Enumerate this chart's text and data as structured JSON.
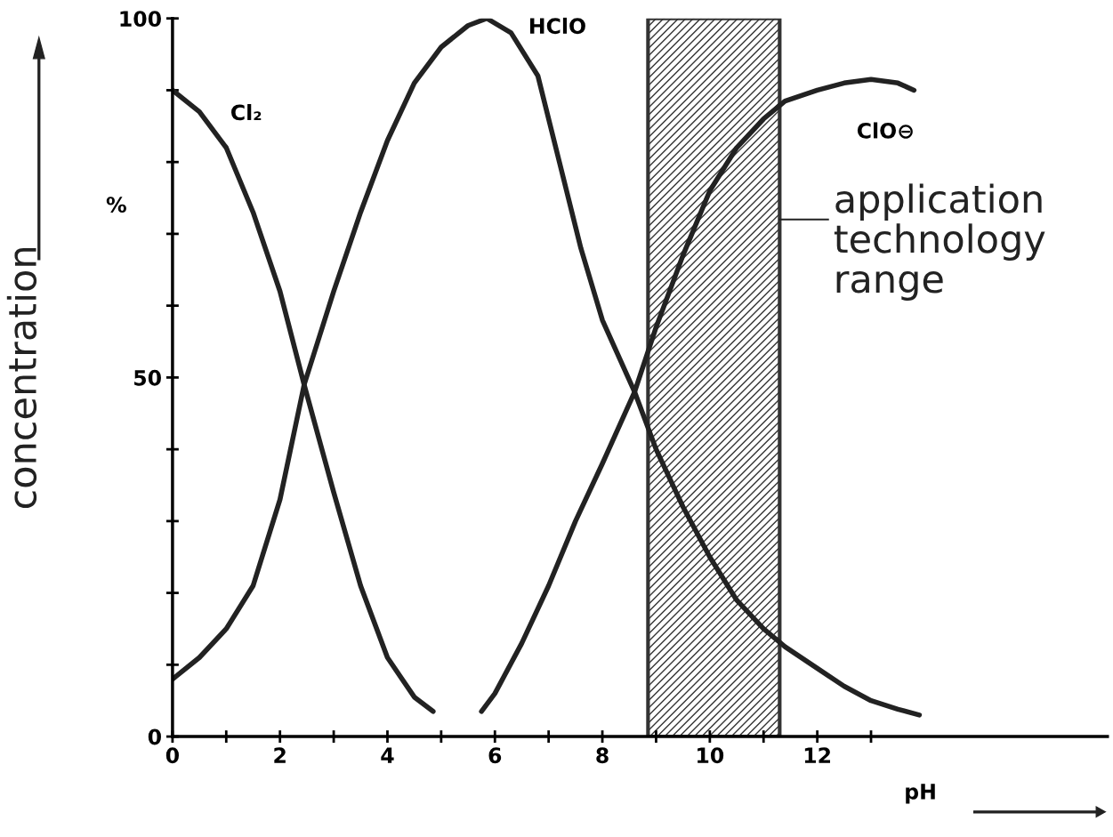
{
  "chart_data": {
    "type": "line",
    "xlabel": "pH",
    "ylabel": "concentration",
    "xlim": [
      0,
      17.4
    ],
    "ylim": [
      0,
      100
    ],
    "xticks": [
      0,
      {
        "value": 1,
        "label": null
      },
      2,
      {
        "value": 3,
        "label": null
      },
      4,
      {
        "value": 5,
        "label": null
      },
      6,
      {
        "value": 7,
        "label": null
      },
      8,
      {
        "value": 9,
        "label": null
      },
      10,
      {
        "value": 11,
        "label": null
      },
      12,
      {
        "value": 13,
        "label": null
      }
    ],
    "yticks": [
      0,
      {
        "value": 10,
        "label": null
      },
      {
        "value": 20,
        "label": null
      },
      {
        "value": 30,
        "label": null
      },
      {
        "value": 40,
        "label": null
      },
      50,
      {
        "value": 60,
        "label": null
      },
      {
        "value": 70,
        "label": null
      },
      {
        "value": 80,
        "label": null
      },
      {
        "value": 90,
        "label": null
      },
      100
    ],
    "series": [
      {
        "name": "Cl₂",
        "color": "#222222",
        "x": [
          0,
          0.5,
          1,
          1.5,
          2,
          2.45,
          3,
          3.5,
          4,
          4.5,
          4.85
        ],
        "values": [
          90,
          87,
          82,
          73,
          62,
          49,
          34,
          21,
          11,
          5.5,
          3.5
        ]
      },
      {
        "name": "HClO",
        "color": "#222222",
        "x": [
          0,
          0.5,
          1,
          1.5,
          2,
          2.45,
          3,
          3.5,
          4,
          4.5,
          5,
          5.5,
          5.85,
          6.3,
          6.8,
          7.2,
          7.6,
          8,
          8.6,
          9,
          9.5,
          10,
          10.5,
          11,
          11.4,
          12,
          12.5,
          13,
          13.5,
          13.9
        ],
        "values": [
          8,
          11,
          15,
          21,
          33,
          49,
          62,
          73,
          83,
          91,
          96,
          99,
          100,
          98,
          92,
          80,
          68,
          58,
          48,
          40,
          32,
          25,
          19,
          15,
          12.5,
          9.5,
          7,
          5,
          3.8,
          3
        ]
      },
      {
        "name": "ClO⊖",
        "color": "#222222",
        "x": [
          5.75,
          6,
          6.5,
          7,
          7.5,
          8,
          8.6,
          9,
          9.5,
          10,
          10.5,
          11,
          11.4,
          12,
          12.5,
          13,
          13.5,
          13.8
        ],
        "values": [
          3.5,
          6,
          13,
          21,
          30,
          38,
          48,
          57,
          67,
          76,
          82,
          86,
          88.5,
          90,
          91,
          91.5,
          91,
          90
        ]
      }
    ],
    "bands": [
      {
        "axis": "x",
        "from": 8.85,
        "to": 11.3,
        "label": "application\ntechnology\nrange"
      }
    ],
    "annotations": [
      "%"
    ],
    "grid": false,
    "legend": false,
    "marker": "none",
    "line_style": "solid"
  }
}
